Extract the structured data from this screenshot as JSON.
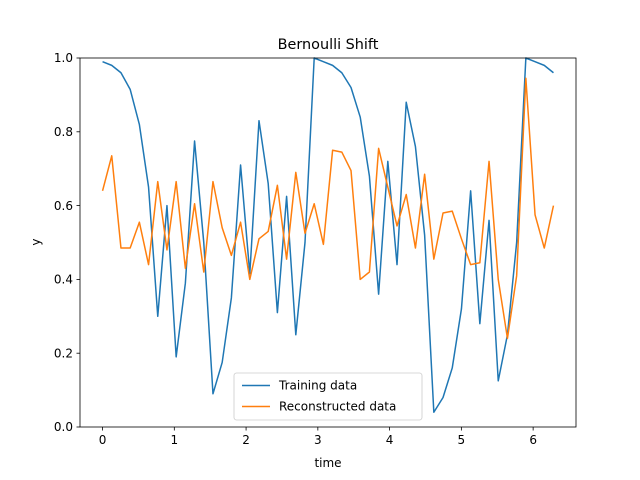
{
  "chart_data": {
    "type": "line",
    "title": "Bernoulli Shift",
    "xlabel": "time",
    "ylabel": "y",
    "xlim": [
      -0.3142,
      6.5973
    ],
    "ylim": [
      0.0,
      1.0
    ],
    "xticks": [
      0,
      1,
      2,
      3,
      4,
      5,
      6
    ],
    "yticks": [
      0.0,
      0.2,
      0.4,
      0.6,
      0.8,
      1.0
    ],
    "tick_labels_x": [
      "0",
      "1",
      "2",
      "3",
      "4",
      "5",
      "6"
    ],
    "tick_labels_y": [
      "0.0",
      "0.2",
      "0.4",
      "0.6",
      "0.8",
      "1.0"
    ],
    "grid": false,
    "legend": {
      "placement": "lower center",
      "entries": [
        "Training data",
        "Reconstructed data"
      ]
    },
    "x": [
      0.0,
      0.1282,
      0.2565,
      0.3847,
      0.5129,
      0.6411,
      0.7694,
      0.8976,
      1.0258,
      1.1541,
      1.2823,
      1.4105,
      1.5387,
      1.667,
      1.7952,
      1.9234,
      2.0517,
      2.1799,
      2.3081,
      2.4363,
      2.5646,
      2.6928,
      2.821,
      2.9493,
      3.0775,
      3.2057,
      3.3339,
      3.4622,
      3.5904,
      3.7186,
      3.8469,
      3.9751,
      4.1033,
      4.2315,
      4.3598,
      4.488,
      4.6162,
      4.7445,
      4.8727,
      5.0009,
      5.1291,
      5.2574,
      5.3856,
      5.5138,
      5.6421,
      5.7703,
      5.8985,
      6.0267,
      6.155,
      6.2832
    ],
    "series": [
      {
        "name": "Training data",
        "color": "#1f77b4",
        "values": [
          0.99,
          0.98,
          0.96,
          0.915,
          0.82,
          0.65,
          0.3,
          0.6,
          0.19,
          0.39,
          0.775,
          0.5,
          0.09,
          0.175,
          0.35,
          0.71,
          0.415,
          0.83,
          0.66,
          0.31,
          0.625,
          0.25,
          0.5,
          1.0,
          0.99,
          0.98,
          0.96,
          0.92,
          0.84,
          0.68,
          0.36,
          0.72,
          0.44,
          0.88,
          0.76,
          0.52,
          0.04,
          0.08,
          0.16,
          0.32,
          0.64,
          0.28,
          0.56,
          0.125,
          0.25,
          0.5,
          1.0,
          0.99,
          0.98,
          0.96
        ]
      },
      {
        "name": "Reconstructed data",
        "color": "#ff7f0e",
        "values": [
          0.64,
          0.735,
          0.485,
          0.485,
          0.555,
          0.44,
          0.665,
          0.48,
          0.665,
          0.43,
          0.605,
          0.42,
          0.665,
          0.54,
          0.465,
          0.555,
          0.4,
          0.51,
          0.53,
          0.655,
          0.455,
          0.69,
          0.525,
          0.605,
          0.495,
          0.75,
          0.745,
          0.695,
          0.4,
          0.42,
          0.755,
          0.65,
          0.545,
          0.63,
          0.485,
          0.685,
          0.455,
          0.58,
          0.585,
          0.51,
          0.44,
          0.445,
          0.72,
          0.4,
          0.24,
          0.41,
          0.945,
          0.575,
          0.485,
          0.6
        ]
      }
    ]
  }
}
